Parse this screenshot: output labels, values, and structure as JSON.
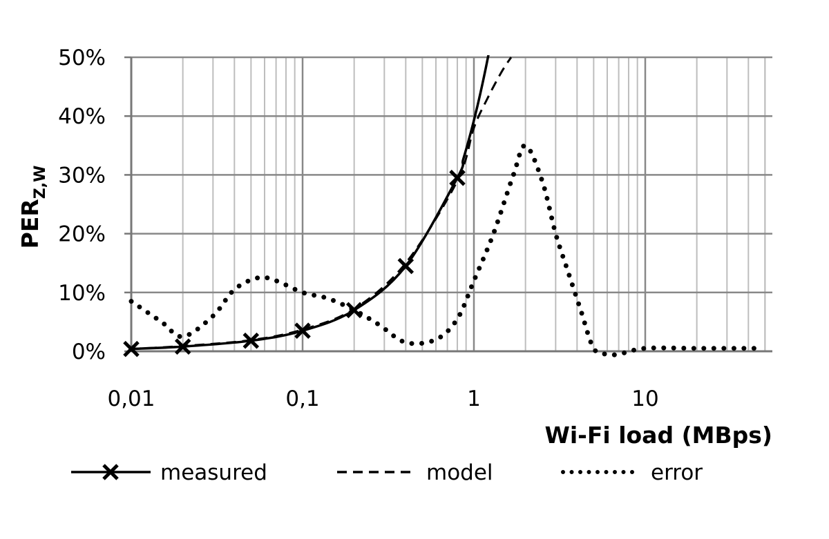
{
  "chart_data": {
    "type": "line",
    "x_scale": "log",
    "xlim": [
      0.01,
      50
    ],
    "ylim": [
      0,
      0.5
    ],
    "grid": true,
    "xlabel": "Wi-Fi load (MBps)",
    "ylabel_main": "PER",
    "ylabel_sub": "Z,W",
    "x_ticks": [
      {
        "value": 0.01,
        "label": "0,01"
      },
      {
        "value": 0.1,
        "label": "0,1"
      },
      {
        "value": 1,
        "label": "1"
      },
      {
        "value": 10,
        "label": "10"
      }
    ],
    "y_ticks": [
      {
        "value": 0,
        "label": "0%"
      },
      {
        "value": 0.1,
        "label": "10%"
      },
      {
        "value": 0.2,
        "label": "20%"
      },
      {
        "value": 0.3,
        "label": "30%"
      },
      {
        "value": 0.4,
        "label": "40%"
      },
      {
        "value": 0.5,
        "label": "50%"
      }
    ],
    "legend_position": "bottom",
    "series": [
      {
        "name": "measured",
        "style": "solid-x",
        "x": [
          0.01,
          0.02,
          0.05,
          0.1,
          0.2,
          0.4,
          0.8
        ],
        "y": [
          0.004,
          0.008,
          0.018,
          0.035,
          0.07,
          0.145,
          0.295
        ]
      },
      {
        "name": "model",
        "style": "dashed",
        "x": [
          0.01,
          0.02,
          0.05,
          0.1,
          0.2,
          0.4,
          0.8,
          1.0,
          1.2,
          1.45,
          1.65
        ],
        "y": [
          0.004,
          0.009,
          0.019,
          0.037,
          0.072,
          0.15,
          0.29,
          0.38,
          0.43,
          0.475,
          0.5
        ]
      },
      {
        "name": "error",
        "style": "dotted",
        "x": [
          0.01,
          0.015,
          0.02,
          0.03,
          0.04,
          0.055,
          0.07,
          0.1,
          0.14,
          0.2,
          0.28,
          0.4,
          0.6,
          0.8,
          1.0,
          1.3,
          1.7,
          2.0,
          2.5,
          3.0,
          3.5,
          4.2,
          5.0,
          6.0,
          7.0,
          10,
          20,
          45
        ],
        "y": [
          0.085,
          0.05,
          0.025,
          0.06,
          0.105,
          0.125,
          0.12,
          0.1,
          0.09,
          0.07,
          0.045,
          0.015,
          0.02,
          0.055,
          0.12,
          0.2,
          0.3,
          0.35,
          0.29,
          0.2,
          0.14,
          0.07,
          0.005,
          -0.005,
          -0.005,
          0.005,
          0.005,
          0.005
        ]
      }
    ]
  }
}
